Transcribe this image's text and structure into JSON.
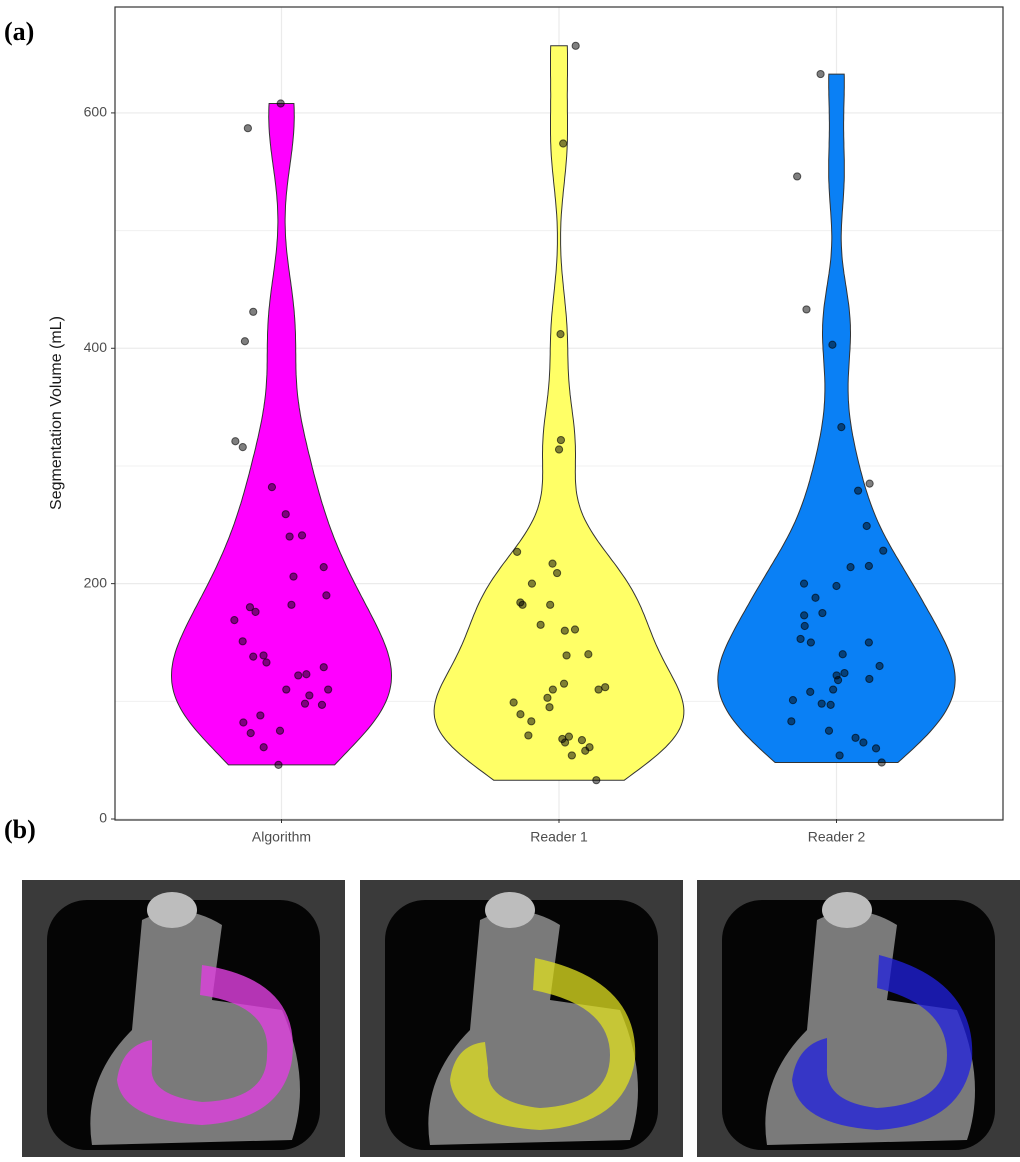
{
  "panel_labels": [
    "(a)",
    "(b)"
  ],
  "chart_data": {
    "type": "violin",
    "ylabel": "Segmentation Volume (mL)",
    "categories": [
      "Algorithm",
      "Reader 1",
      "Reader 2"
    ],
    "colors": [
      "#ff00ff",
      "#ffff66",
      "#0a80f5"
    ],
    "values": [
      [
        608,
        587,
        431,
        406,
        321,
        316,
        282,
        259,
        241,
        240,
        214,
        206,
        190,
        182,
        180,
        176,
        169,
        151,
        139,
        138,
        133,
        129,
        123,
        122,
        110,
        110,
        105,
        98,
        97,
        88,
        82,
        75,
        73,
        61,
        46
      ],
      [
        657,
        574,
        412,
        322,
        314,
        227,
        217,
        209,
        200,
        184,
        182,
        182,
        165,
        161,
        160,
        140,
        139,
        115,
        112,
        110,
        110,
        103,
        99,
        95,
        89,
        83,
        71,
        70,
        68,
        67,
        65,
        61,
        58,
        54,
        33
      ],
      [
        633,
        546,
        433,
        403,
        333,
        285,
        279,
        249,
        228,
        215,
        214,
        200,
        198,
        188,
        175,
        173,
        164,
        153,
        150,
        150,
        140,
        130,
        124,
        122,
        119,
        118,
        110,
        108,
        101,
        98,
        97,
        83,
        75,
        69,
        65,
        60,
        54,
        48
      ]
    ],
    "ylim": [
      0,
      690
    ],
    "yticks": [
      0,
      200,
      400,
      600
    ],
    "minor_yticks": [
      100,
      300,
      500
    ],
    "grid": true
  }
}
